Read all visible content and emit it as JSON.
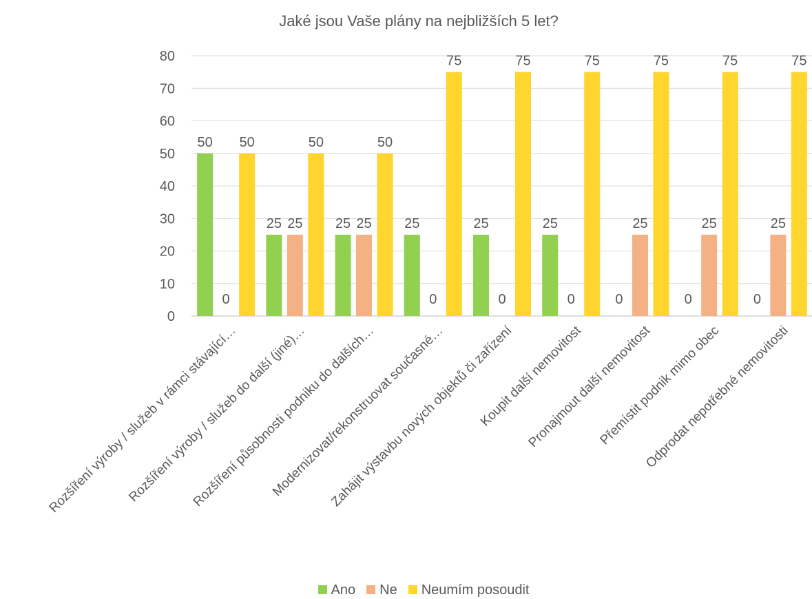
{
  "chart_data": {
    "type": "bar",
    "title": "Jaké jsou Vaše plány na nejbližších 5 let?",
    "categories": [
      "Rozšíření výroby / služeb v rámci stávající…",
      "Rozšíření výroby / služeb do další (jiné)…",
      "Rozšíření působnosti podniku do dalších…",
      "Modernizovat/rekonstruovat současné…",
      "Zahájit výstavbu nových objektů či zařízení",
      "Koupit další nemovitost",
      "Pronajmout další nemovitost",
      "Přemístit podnik mimo obec",
      "Odprodat nepotřebné nemovitosti"
    ],
    "series": [
      {
        "name": "Ano",
        "color": "#92D050",
        "values": [
          50,
          25,
          25,
          25,
          25,
          25,
          0,
          0,
          0
        ]
      },
      {
        "name": "Ne",
        "color": "#F4B183",
        "values": [
          0,
          25,
          25,
          0,
          0,
          0,
          25,
          25,
          25
        ]
      },
      {
        "name": "Neumím posoudit",
        "color": "#FFD52E",
        "values": [
          50,
          50,
          50,
          75,
          75,
          75,
          75,
          75,
          75
        ]
      }
    ],
    "ylim": [
      0,
      80
    ],
    "yticks": [
      0,
      10,
      20,
      30,
      40,
      50,
      60,
      70,
      80
    ],
    "grid": true,
    "legend_position": "bottom",
    "data_labels": true
  }
}
